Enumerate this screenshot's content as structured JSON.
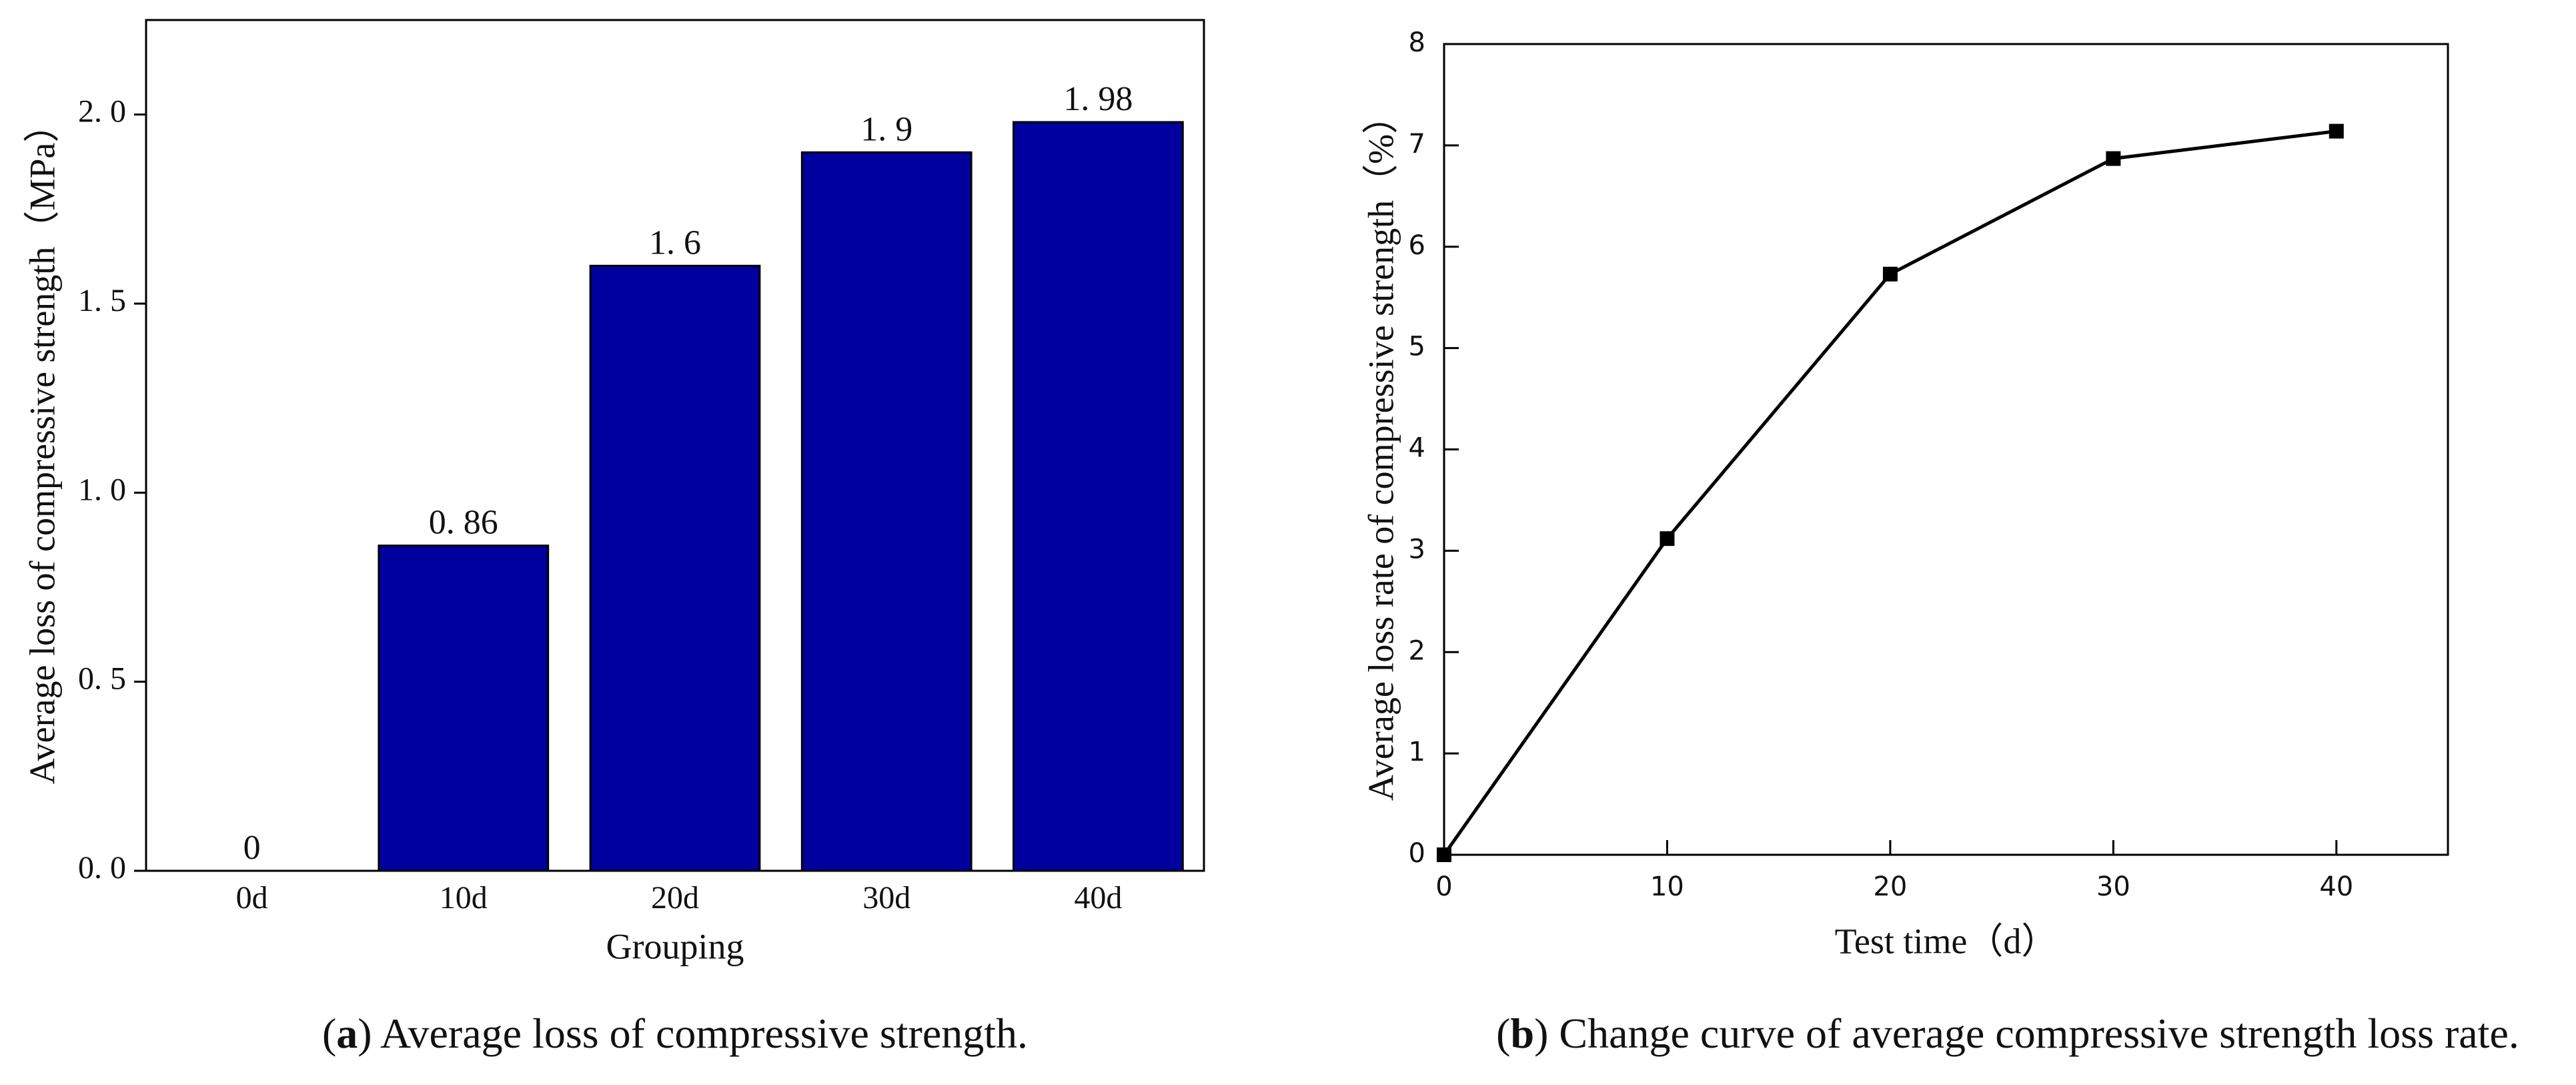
{
  "chart_data": [
    {
      "type": "bar",
      "caption": [
        "(",
        "a",
        ") Average loss of compressive strength."
      ],
      "xlabel": "Grouping",
      "ylabel": "Average loss of compressive strength（MPa）",
      "categories": [
        "0d",
        "10d",
        "20d",
        "30d",
        "40d"
      ],
      "values": [
        0,
        0.86,
        1.6,
        1.9,
        1.98
      ],
      "value_labels": [
        "0",
        "0. 86",
        "1. 6",
        "1. 9",
        "1. 98"
      ],
      "color": "#00009f",
      "ylim": [
        0,
        2.25
      ],
      "yticks": [
        {
          "value": 0,
          "label": "0. 0"
        },
        {
          "value": 0.5,
          "label": "0. 5"
        },
        {
          "value": 1,
          "label": "1. 0"
        },
        {
          "value": 1.5,
          "label": "1. 5"
        },
        {
          "value": 2,
          "label": "2. 0"
        }
      ]
    },
    {
      "type": "line",
      "caption": [
        "(",
        "b",
        ") Change curve of average compressive strength loss rate."
      ],
      "xlabel": "Test time（d）",
      "ylabel": "Average loss rate of compressive strength（%）",
      "x": [
        0,
        10,
        20,
        30,
        40
      ],
      "values": [
        0,
        3.12,
        5.73,
        6.87,
        7.14
      ],
      "color": "#000000",
      "marker": "square",
      "xlim": [
        0,
        45
      ],
      "xticks": [
        0,
        10,
        20,
        30,
        40
      ],
      "ylim": [
        0,
        8
      ],
      "yticks": [
        0,
        1,
        2,
        3,
        4,
        5,
        6,
        7,
        8
      ]
    }
  ]
}
